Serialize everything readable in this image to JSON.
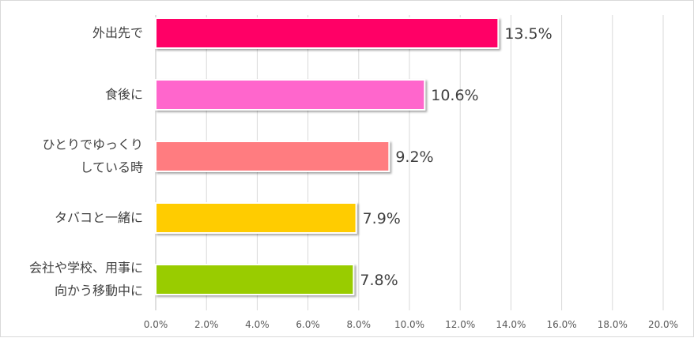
{
  "chart_data": {
    "type": "bar",
    "orientation": "horizontal",
    "title": "",
    "xlabel": "",
    "ylabel": "",
    "categories": [
      [
        "外出先で"
      ],
      [
        "食後に"
      ],
      [
        "ひとりでゆっくり",
        "している時"
      ],
      [
        "タバコと一緒に"
      ],
      [
        "会社や学校、用事に",
        "向かう移動中に"
      ]
    ],
    "values": [
      13.5,
      10.6,
      9.2,
      7.9,
      7.8
    ],
    "value_labels": [
      "13.5%",
      "10.6%",
      "9.2%",
      "7.9%",
      "7.8%"
    ],
    "colors": [
      "#ff0066",
      "#ff66cc",
      "#ff7c80",
      "#ffcc00",
      "#99cc00"
    ],
    "xlim": [
      0,
      20
    ],
    "ticks": [
      "0.0%",
      "2.0%",
      "4.0%",
      "6.0%",
      "8.0%",
      "10.0%",
      "12.0%",
      "14.0%",
      "16.0%",
      "18.0%",
      "20.0%"
    ],
    "grid": true,
    "legend": "none"
  }
}
